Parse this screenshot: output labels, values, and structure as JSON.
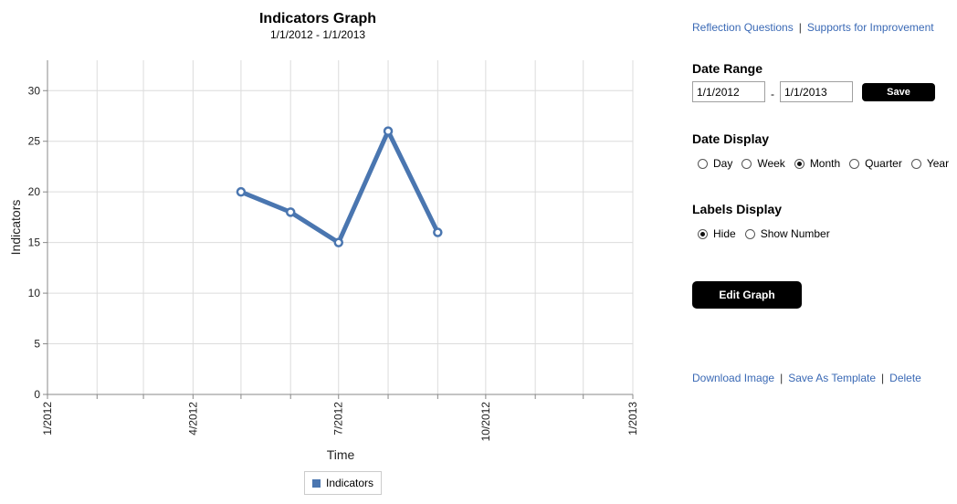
{
  "chart_data": {
    "type": "line",
    "title": "Indicators Graph",
    "subtitle": "1/1/2012 - 1/1/2013",
    "xlabel": "Time",
    "ylabel": "Indicators",
    "x_tick_labels": [
      "1/2012",
      "4/2012",
      "7/2012",
      "10/2012",
      "1/2013"
    ],
    "x_tick_dates": [
      "2012-01-01",
      "2012-04-01",
      "2012-07-01",
      "2012-10-01",
      "2013-01-01"
    ],
    "xlim": [
      "2012-01-01",
      "2013-01-01"
    ],
    "ylim": [
      0,
      33
    ],
    "y_ticks": [
      0,
      5,
      10,
      15,
      20,
      25,
      30
    ],
    "grid": true,
    "legend": "bottom",
    "series": [
      {
        "name": "Indicators",
        "color": "#4a76b0",
        "x": [
          "2012-05-01",
          "2012-06-01",
          "2012-07-01",
          "2012-08-01",
          "2012-09-01"
        ],
        "values": [
          20,
          18,
          15,
          26,
          16
        ]
      }
    ]
  },
  "panel": {
    "links_top": [
      "Reflection Questions",
      "Supports for Improvement"
    ],
    "date_range": {
      "title": "Date Range",
      "start": "1/1/2012",
      "end": "1/1/2013",
      "separator": "-",
      "save_label": "Save"
    },
    "date_display": {
      "title": "Date Display",
      "options": [
        "Day",
        "Week",
        "Month",
        "Quarter",
        "Year"
      ],
      "selected": "Month"
    },
    "labels_display": {
      "title": "Labels Display",
      "options": [
        "Hide",
        "Show Number"
      ],
      "selected": "Hide"
    },
    "edit_graph_label": "Edit Graph",
    "links_bottom": [
      "Download Image",
      "Save As Template",
      "Delete"
    ]
  }
}
